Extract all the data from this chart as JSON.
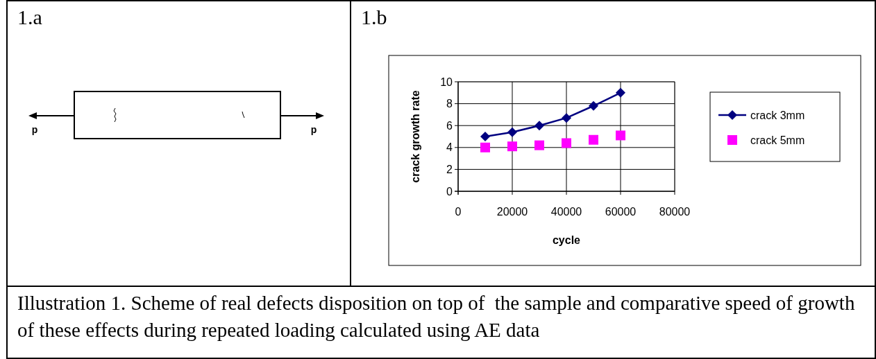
{
  "chart_data": {
    "type": "line",
    "xlabel": "cycle",
    "ylabel": "crack growth rate",
    "x": [
      10000,
      20000,
      30000,
      40000,
      50000,
      60000
    ],
    "xlim": [
      0,
      80000
    ],
    "xticks": [
      0,
      20000,
      40000,
      60000,
      80000
    ],
    "ylim": [
      0,
      10
    ],
    "yticks": [
      0,
      2,
      4,
      6,
      8,
      10
    ],
    "grid": true,
    "legend": "right",
    "series": [
      {
        "name": "crack 3mm",
        "color": "#000080",
        "marker": "diamond",
        "values": [
          5,
          5.4,
          6,
          6.7,
          7.8,
          9
        ]
      },
      {
        "name": "crack 5mm",
        "color": "#ff00ff",
        "type": "scatter",
        "marker": "square",
        "values": [
          4,
          4.1,
          4.2,
          4.4,
          4.7,
          5.1
        ]
      }
    ],
    "annotations": [
      "1.a",
      "1.b",
      "p",
      "p",
      "Illustration 1. Scheme of real defects disposition on top of  the sample and comparative speed of growth of these effects during repeated loading calculated using AE data"
    ]
  }
}
